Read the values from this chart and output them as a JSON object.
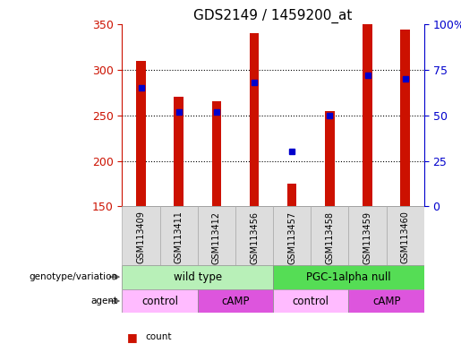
{
  "title": "GDS2149 / 1459200_at",
  "samples": [
    "GSM113409",
    "GSM113411",
    "GSM113412",
    "GSM113456",
    "GSM113457",
    "GSM113458",
    "GSM113459",
    "GSM113460"
  ],
  "counts": [
    310,
    270,
    265,
    340,
    175,
    255,
    350,
    344
  ],
  "percentile_ranks": [
    65,
    52,
    52,
    68,
    30,
    50,
    72,
    70
  ],
  "y_min": 150,
  "y_max": 350,
  "y_ticks": [
    150,
    200,
    250,
    300,
    350
  ],
  "y2_ticks": [
    0,
    25,
    50,
    75,
    100
  ],
  "bar_color": "#cc1100",
  "dot_color": "#0000cc",
  "genotype_groups": [
    {
      "label": "wild type",
      "start": 0,
      "end": 4,
      "color": "#b8f0b8"
    },
    {
      "label": "PGC-1alpha null",
      "start": 4,
      "end": 8,
      "color": "#55dd55"
    }
  ],
  "agent_groups": [
    {
      "label": "control",
      "start": 0,
      "end": 2,
      "color": "#ffbbff"
    },
    {
      "label": "cAMP",
      "start": 2,
      "end": 4,
      "color": "#dd55dd"
    },
    {
      "label": "control",
      "start": 4,
      "end": 6,
      "color": "#ffbbff"
    },
    {
      "label": "cAMP",
      "start": 6,
      "end": 8,
      "color": "#dd55dd"
    }
  ],
  "bar_width": 0.25,
  "dot_size": 40,
  "figsize": [
    5.15,
    3.84
  ],
  "dpi": 100
}
